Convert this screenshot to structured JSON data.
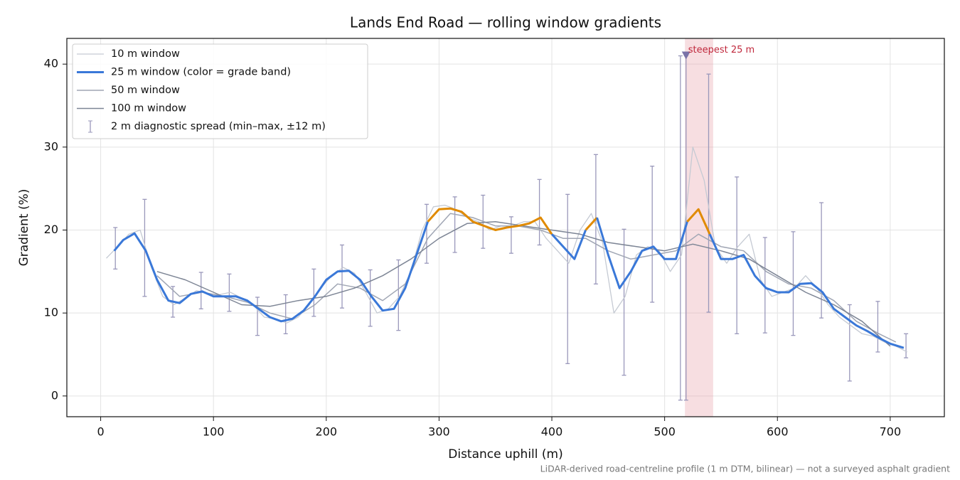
{
  "chart_data": {
    "type": "line",
    "title": "Lands End Road — rolling window gradients",
    "x_label": "Distance uphill (m)",
    "y_label": "Gradient (%)",
    "footnote": "LiDAR-derived road-centreline profile (1 m DTM, bilinear) — not a surveyed asphalt gradient",
    "xlim": [
      -30,
      748
    ],
    "ylim": [
      -2.5,
      43.1
    ],
    "xticks": [
      0,
      100,
      200,
      300,
      400,
      500,
      600,
      700
    ],
    "yticks": [
      0,
      10,
      20,
      30,
      40
    ],
    "grid": true,
    "legend": "upper left",
    "series": [
      {
        "name": "10 m window",
        "color": "#c5cad3",
        "width": 1.3,
        "x": [
          5,
          15,
          25,
          35,
          45,
          55,
          65,
          75,
          85,
          95,
          105,
          115,
          125,
          135,
          145,
          155,
          165,
          175,
          185,
          195,
          205,
          215,
          225,
          235,
          245,
          255,
          265,
          275,
          285,
          295,
          305,
          315,
          325,
          335,
          345,
          355,
          365,
          375,
          385,
          395,
          405,
          415,
          425,
          435,
          445,
          455,
          465,
          475,
          485,
          495,
          505,
          515,
          525,
          535,
          545,
          555,
          565,
          575,
          585,
          595,
          605,
          615,
          625,
          635,
          645,
          655,
          665,
          675,
          685,
          695,
          705,
          715
        ],
        "values": [
          16.6,
          18,
          19.5,
          20,
          15.5,
          12,
          11,
          11.8,
          12.7,
          12.3,
          12.2,
          12.5,
          11.8,
          11,
          9.5,
          9.3,
          8.8,
          9.5,
          11,
          13,
          14.5,
          15.5,
          14.8,
          12.5,
          10,
          10.5,
          12,
          15,
          20,
          22.8,
          23,
          22.5,
          21.5,
          21,
          20,
          20.5,
          20.5,
          21,
          21,
          19,
          17.5,
          16,
          20,
          22,
          18.5,
          10,
          12,
          17,
          18,
          17.5,
          15,
          17,
          30,
          26,
          18,
          16,
          18,
          19.5,
          14,
          12,
          12.5,
          13,
          14.5,
          13,
          11,
          9.5,
          8.5,
          7.5,
          7.2,
          6.5,
          6,
          5.3
        ]
      },
      {
        "name": "25 m window (color = grade band)",
        "color": "#3a78d8",
        "width": 3,
        "grade_bands": [
          {
            "from": 20,
            "color": "#e08a00"
          }
        ],
        "x": [
          12,
          20,
          30,
          40,
          50,
          60,
          70,
          80,
          90,
          100,
          110,
          120,
          130,
          140,
          150,
          160,
          170,
          180,
          190,
          200,
          210,
          220,
          230,
          240,
          250,
          260,
          270,
          280,
          290,
          300,
          310,
          320,
          330,
          340,
          350,
          360,
          370,
          380,
          390,
          400,
          410,
          420,
          430,
          440,
          450,
          460,
          470,
          480,
          490,
          500,
          510,
          520,
          530,
          540,
          550,
          560,
          570,
          580,
          590,
          600,
          610,
          620,
          630,
          640,
          650,
          660,
          670,
          680,
          690,
          700,
          712
        ],
        "values": [
          17.5,
          18.8,
          19.6,
          17.5,
          14,
          11.5,
          11.2,
          12.3,
          12.6,
          12,
          12,
          12,
          11.5,
          10.5,
          9.5,
          9,
          9.3,
          10.3,
          12,
          14,
          15,
          15.1,
          14,
          12,
          10.3,
          10.5,
          13,
          17,
          21,
          22.5,
          22.6,
          22.2,
          21,
          20.5,
          20,
          20.3,
          20.5,
          20.8,
          21.5,
          19.5,
          18,
          16.5,
          20,
          21.5,
          17,
          13,
          15,
          17.5,
          18,
          16.5,
          16.5,
          21,
          22.5,
          19.5,
          16.5,
          16.5,
          17,
          14.5,
          13,
          12.5,
          12.5,
          13.5,
          13.6,
          12.5,
          10.5,
          9.5,
          8.5,
          7.8,
          7,
          6.3,
          5.8
        ]
      },
      {
        "name": "50 m window",
        "color": "#a0a6b4",
        "width": 1.5,
        "x": [
          50,
          70,
          90,
          110,
          130,
          150,
          170,
          190,
          210,
          230,
          250,
          270,
          290,
          310,
          330,
          350,
          370,
          390,
          410,
          430,
          450,
          470,
          490,
          510,
          530,
          550,
          570,
          590,
          610,
          630,
          650,
          670,
          690,
          705
        ],
        "values": [
          14.5,
          12,
          12.5,
          12,
          11.3,
          10,
          9.3,
          11,
          13.5,
          13,
          11.5,
          13.5,
          19,
          22,
          21.5,
          20.5,
          20.5,
          20,
          19,
          19,
          17.5,
          16.5,
          17,
          17.5,
          19.5,
          18,
          17.5,
          15,
          13.5,
          13,
          11.5,
          9,
          7.5,
          6.5
        ]
      },
      {
        "name": "100 m window",
        "color": "#7d8595",
        "width": 1.5,
        "x": [
          50,
          75,
          100,
          125,
          150,
          175,
          200,
          225,
          250,
          275,
          300,
          325,
          350,
          375,
          400,
          425,
          450,
          475,
          500,
          525,
          550,
          575,
          600,
          625,
          650,
          675,
          700
        ],
        "values": [
          15,
          14,
          12.5,
          11,
          10.8,
          11.5,
          12,
          13,
          14.5,
          16.5,
          19,
          20.8,
          21,
          20.5,
          20,
          19.5,
          18.5,
          18,
          17.5,
          18.3,
          17.5,
          16.5,
          14.5,
          12.5,
          11,
          9,
          6
        ]
      }
    ],
    "errorbars": {
      "name": "2 m diagnostic spread (min–max, ±12 m)",
      "color": "#9a98bb",
      "x": [
        13,
        39,
        64,
        89,
        114,
        139,
        164,
        189,
        214,
        239,
        264,
        289,
        314,
        339,
        364,
        389,
        414,
        439,
        464,
        489,
        514,
        519,
        539,
        564,
        589,
        614,
        639,
        664,
        689,
        714
      ],
      "low": [
        15.3,
        12,
        9.5,
        10.5,
        10.2,
        7.3,
        7.5,
        9.6,
        10.6,
        8.4,
        7.9,
        16,
        17.3,
        17.8,
        17.2,
        18.2,
        3.9,
        13.5,
        2.5,
        11.3,
        -0.5,
        -0.5,
        10.1,
        7.5,
        7.6,
        7.3,
        9.4,
        1.8,
        5.3,
        4.6
      ],
      "high": [
        20.3,
        23.7,
        13.2,
        14.9,
        14.7,
        11.9,
        12.2,
        15.3,
        18.2,
        15.2,
        16.4,
        23.1,
        24,
        24.2,
        21.6,
        26.1,
        24.3,
        29.1,
        20.1,
        27.7,
        41,
        41,
        38.8,
        26.4,
        19.1,
        19.8,
        23.3,
        11,
        11.4,
        7.5
      ]
    },
    "highlight": {
      "x": [
        518,
        543
      ],
      "color": "#e8a0a8"
    },
    "marker": {
      "x": 519,
      "y": 41,
      "label": "steepest 25 m",
      "color": "#7a72a8",
      "label_color": "#c0283c"
    }
  }
}
